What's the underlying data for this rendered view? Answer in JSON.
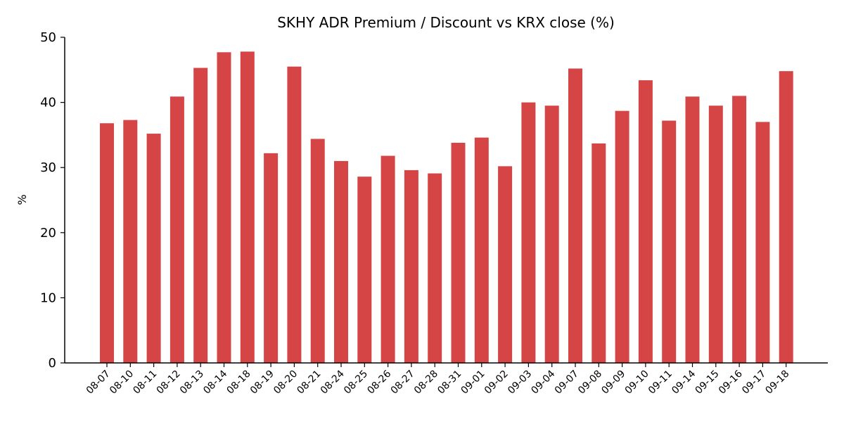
{
  "chart_data": {
    "type": "bar",
    "title": "SKHY ADR Premium / Discount vs KRX close (%)",
    "xlabel": "",
    "ylabel": "%",
    "ylim": [
      0,
      50
    ],
    "yticks": [
      0,
      10,
      20,
      30,
      40,
      50
    ],
    "grid": false,
    "legend": "none",
    "bar_color": "#d64545",
    "categories": [
      "08-07",
      "08-10",
      "08-11",
      "08-12",
      "08-13",
      "08-14",
      "08-18",
      "08-19",
      "08-20",
      "08-21",
      "08-24",
      "08-25",
      "08-26",
      "08-27",
      "08-28",
      "08-31",
      "09-01",
      "09-02",
      "09-03",
      "09-04",
      "09-07",
      "09-08",
      "09-09",
      "09-10",
      "09-11",
      "09-14",
      "09-15",
      "09-16",
      "09-17",
      "09-18"
    ],
    "values": [
      36.8,
      37.3,
      35.2,
      40.9,
      45.3,
      47.7,
      47.8,
      32.2,
      45.5,
      34.4,
      31.0,
      28.6,
      31.8,
      29.6,
      29.1,
      33.8,
      34.6,
      30.2,
      40.0,
      39.5,
      45.2,
      33.7,
      38.7,
      43.4,
      37.2,
      40.9,
      39.5,
      41.0,
      37.0,
      44.8
    ]
  }
}
